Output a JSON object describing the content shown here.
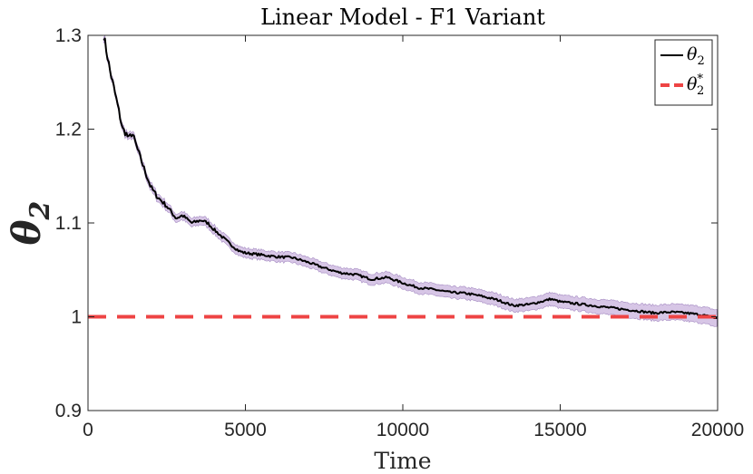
{
  "chart_data": {
    "type": "line",
    "title": "Linear Model - F1 Variant",
    "xlabel": "Time",
    "ylabel": {
      "symbol": "θ",
      "subscript": "2"
    },
    "xlim": [
      0,
      20000
    ],
    "ylim": [
      0.9,
      1.3
    ],
    "xticks": [
      0,
      5000,
      10000,
      15000,
      20000
    ],
    "xtick_labels": [
      "0",
      "5000",
      "10000",
      "15000",
      "20000"
    ],
    "yticks": [
      0.9,
      1.0,
      1.1,
      1.2,
      1.3
    ],
    "ytick_labels": [
      "0.9",
      "1",
      "1.1",
      "1.2",
      "1.3"
    ],
    "grid": false,
    "legend_position": "top-right",
    "series": [
      {
        "name": "θ2",
        "legend_symbol": "θ",
        "legend_subscript": "2",
        "legend_superscript": "",
        "style": "solid",
        "color": "#000000",
        "x": [
          500,
          700,
          900,
          1100,
          1200,
          1300,
          1400,
          1600,
          1800,
          2000,
          2200,
          2500,
          2800,
          3000,
          3300,
          3600,
          3800,
          4000,
          4200,
          4500,
          4800,
          5000,
          5500,
          6000,
          6500,
          7000,
          7500,
          8000,
          8500,
          9000,
          9500,
          10000,
          10500,
          11000,
          11500,
          12000,
          12500,
          13000,
          13500,
          14000,
          14500,
          14700,
          15000,
          15500,
          16000,
          16500,
          17000,
          17500,
          18000,
          18500,
          19000,
          19500,
          20000
        ],
        "y": [
          1.3,
          1.262,
          1.232,
          1.2,
          1.196,
          1.19,
          1.196,
          1.176,
          1.156,
          1.138,
          1.128,
          1.118,
          1.105,
          1.108,
          1.1,
          1.103,
          1.1,
          1.093,
          1.087,
          1.078,
          1.07,
          1.068,
          1.066,
          1.064,
          1.063,
          1.058,
          1.052,
          1.047,
          1.045,
          1.04,
          1.042,
          1.036,
          1.031,
          1.029,
          1.026,
          1.025,
          1.022,
          1.018,
          1.012,
          1.013,
          1.017,
          1.019,
          1.016,
          1.014,
          1.012,
          1.01,
          1.008,
          1.006,
          1.004,
          1.005,
          1.004,
          1.002,
          0.998
        ]
      },
      {
        "name": "θ2*",
        "legend_symbol": "θ",
        "legend_subscript": "2",
        "legend_superscript": "*",
        "style": "dashed",
        "color": "#ee4444",
        "x": [
          0,
          20000
        ],
        "y": [
          1.0,
          1.0
        ]
      }
    ],
    "confidence_band": {
      "series": "θ2",
      "color": "#c9b3dd",
      "x": [
        500,
        2000,
        5000,
        10000,
        15000,
        20000
      ],
      "halfwidth": [
        0.003,
        0.004,
        0.005,
        0.006,
        0.007,
        0.009
      ]
    }
  }
}
